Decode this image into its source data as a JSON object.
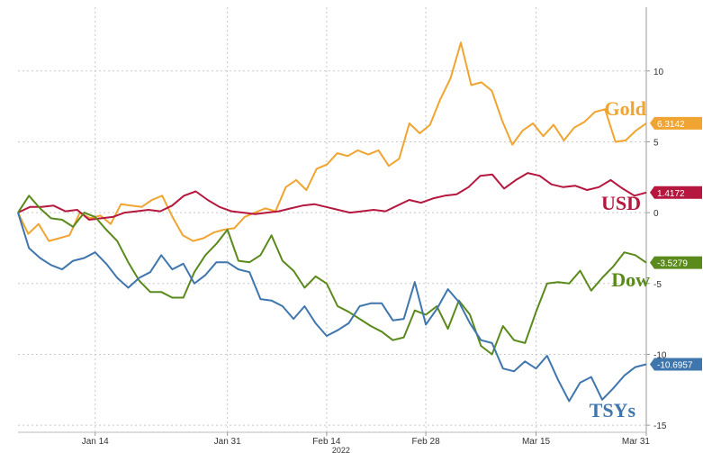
{
  "chart_data": {
    "type": "line",
    "title": "",
    "xlabel": "",
    "ylabel": "",
    "x_tick_labels": [
      "Jan 14",
      "Jan 31",
      "Feb 14",
      "Feb 28",
      "Mar 15",
      "Mar 31"
    ],
    "x_tick_positions": [
      7,
      19,
      28,
      37,
      47,
      57
    ],
    "year_label": "2022",
    "y_ticks": [
      10,
      5,
      0,
      -5,
      -10,
      -15
    ],
    "y_tick_labels": [
      "10",
      "5",
      "0",
      "-5",
      "-10",
      "-15"
    ],
    "xlim": [
      0,
      57
    ],
    "ylim": [
      -15.5,
      14.5
    ],
    "grid": true,
    "series": [
      {
        "name": "Gold",
        "color": "#f0a431",
        "last_label": "6.3142",
        "values": [
          0,
          -1.5,
          -0.8,
          -2.0,
          -1.8,
          -1.6,
          0,
          -0.4,
          -0.2,
          -0.8,
          0.6,
          0.5,
          0.4,
          0.9,
          1.2,
          -0.3,
          -1.6,
          -2.0,
          -1.8,
          -1.4,
          -1.2,
          -1.1,
          -0.3,
          0,
          0.3,
          0.1,
          1.8,
          2.3,
          1.6,
          3.1,
          3.4,
          4.2,
          4.0,
          4.4,
          4.1,
          4.4,
          3.3,
          3.8,
          6.3,
          5.6,
          6.2,
          8.0,
          9.5,
          12.0,
          9.0,
          9.2,
          8.6,
          6.5,
          4.8,
          5.8,
          6.3,
          5.4,
          6.2,
          5.1,
          6.0,
          6.4,
          7.1,
          7.3,
          5.0,
          5.1,
          5.8,
          6.31
        ]
      },
      {
        "name": "USD",
        "color": "#b5173e",
        "last_label": "1.4172",
        "values": [
          0,
          0.4,
          0.4,
          0.5,
          0.1,
          0.2,
          -0.5,
          -0.4,
          -0.3,
          0,
          0.1,
          0.2,
          0.1,
          0.5,
          1.2,
          1.5,
          0.9,
          0.4,
          0.1,
          0,
          -0.1,
          0,
          0.1,
          0.3,
          0.5,
          0.6,
          0.4,
          0.2,
          0,
          0.1,
          0.2,
          0.1,
          0.5,
          0.9,
          0.7,
          1.0,
          1.2,
          1.3,
          1.8,
          2.6,
          2.7,
          1.7,
          2.3,
          2.8,
          2.6,
          2.0,
          1.8,
          1.9,
          1.6,
          1.8,
          2.3,
          1.7,
          1.2,
          1.42
        ]
      },
      {
        "name": "Dow",
        "color": "#5a8a1c",
        "last_label": "-3.5279",
        "values": [
          0,
          1.2,
          0.3,
          -0.4,
          -0.5,
          -1.0,
          0,
          -0.3,
          -1.2,
          -2.0,
          -3.5,
          -4.8,
          -5.6,
          -5.6,
          -6.0,
          -6.0,
          -4.2,
          -3.0,
          -2.2,
          -1.2,
          -3.4,
          -3.5,
          -3.0,
          -1.6,
          -3.4,
          -4.1,
          -5.3,
          -4.5,
          -5.0,
          -6.6,
          -7.0,
          -7.5,
          -8.0,
          -8.4,
          -9.0,
          -8.8,
          -6.9,
          -7.2,
          -6.6,
          -8.2,
          -6.2,
          -7.2,
          -9.4,
          -10.0,
          -8.0,
          -9.0,
          -9.2,
          -7.0,
          -5.0,
          -4.9,
          -5.0,
          -4.1,
          -5.5,
          -4.6,
          -3.8,
          -2.8,
          -3.0,
          -3.53
        ]
      },
      {
        "name": "TSYs",
        "color": "#3e76ad",
        "last_label": "-10.6957",
        "values": [
          0,
          -2.5,
          -3.2,
          -3.7,
          -4.0,
          -3.4,
          -3.2,
          -2.8,
          -3.6,
          -4.6,
          -5.3,
          -4.6,
          -4.2,
          -3.0,
          -4.0,
          -3.6,
          -5.0,
          -4.4,
          -3.5,
          -3.5,
          -4.0,
          -4.2,
          -6.1,
          -6.2,
          -6.6,
          -7.5,
          -6.6,
          -7.8,
          -8.7,
          -8.3,
          -7.8,
          -6.6,
          -6.4,
          -6.4,
          -7.6,
          -7.5,
          -4.9,
          -7.9,
          -6.8,
          -5.4,
          -6.3,
          -7.8,
          -9.0,
          -9.2,
          -11.0,
          -11.2,
          -10.5,
          -11.0,
          -10.1,
          -11.8,
          -13.3,
          -12.0,
          -11.6,
          -13.2,
          -12.4,
          -11.5,
          -10.9,
          -10.7
        ]
      }
    ]
  }
}
